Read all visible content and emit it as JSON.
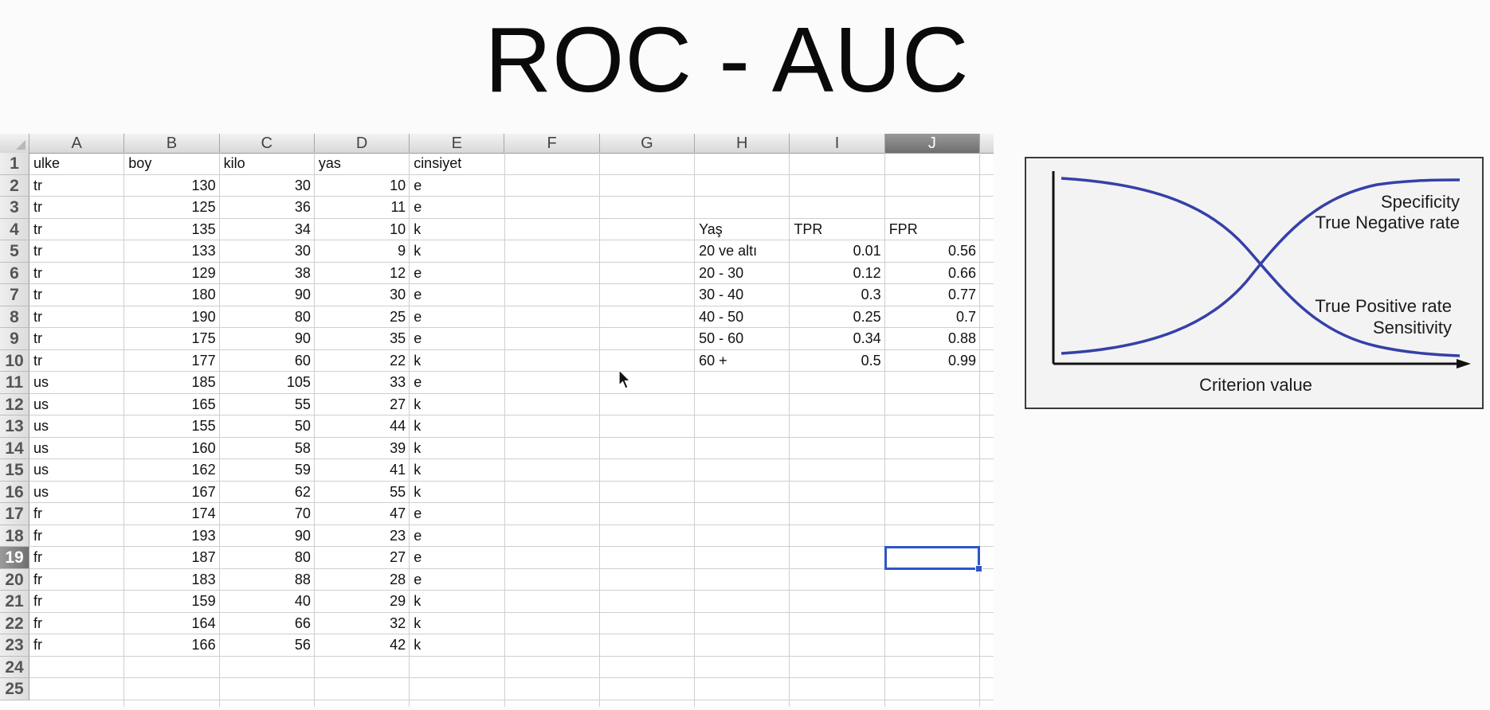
{
  "title": "ROC - AUC",
  "spreadsheet": {
    "columns": [
      "A",
      "B",
      "C",
      "D",
      "E",
      "F",
      "G",
      "H",
      "I",
      "J"
    ],
    "selected_column": "J",
    "selected_row": 19,
    "row_numbers": [
      "1",
      "2",
      "3",
      "4",
      "5",
      "6",
      "7",
      "8",
      "9",
      "10",
      "11",
      "12",
      "13",
      "14",
      "15",
      "16",
      "17",
      "18",
      "19",
      "20",
      "21",
      "22",
      "23",
      "24",
      "25"
    ],
    "headers": {
      "A": "ulke",
      "B": "boy",
      "C": "kilo",
      "D": "yas",
      "E": "cinsiyet"
    },
    "rows": [
      [
        "tr",
        "130",
        "30",
        "10",
        "e"
      ],
      [
        "tr",
        "125",
        "36",
        "11",
        "e"
      ],
      [
        "tr",
        "135",
        "34",
        "10",
        "k"
      ],
      [
        "tr",
        "133",
        "30",
        "9",
        "k"
      ],
      [
        "tr",
        "129",
        "38",
        "12",
        "e"
      ],
      [
        "tr",
        "180",
        "90",
        "30",
        "e"
      ],
      [
        "tr",
        "190",
        "80",
        "25",
        "e"
      ],
      [
        "tr",
        "175",
        "90",
        "35",
        "e"
      ],
      [
        "tr",
        "177",
        "60",
        "22",
        "k"
      ],
      [
        "us",
        "185",
        "105",
        "33",
        "e"
      ],
      [
        "us",
        "165",
        "55",
        "27",
        "k"
      ],
      [
        "us",
        "155",
        "50",
        "44",
        "k"
      ],
      [
        "us",
        "160",
        "58",
        "39",
        "k"
      ],
      [
        "us",
        "162",
        "59",
        "41",
        "k"
      ],
      [
        "us",
        "167",
        "62",
        "55",
        "k"
      ],
      [
        "fr",
        "174",
        "70",
        "47",
        "e"
      ],
      [
        "fr",
        "193",
        "90",
        "23",
        "e"
      ],
      [
        "fr",
        "187",
        "80",
        "27",
        "e"
      ],
      [
        "fr",
        "183",
        "88",
        "28",
        "e"
      ],
      [
        "fr",
        "159",
        "40",
        "29",
        "k"
      ],
      [
        "fr",
        "164",
        "66",
        "32",
        "k"
      ],
      [
        "fr",
        "166",
        "56",
        "42",
        "k"
      ]
    ],
    "side_table": {
      "headers": [
        "Yaş",
        "TPR",
        "FPR"
      ],
      "rows": [
        [
          "20 ve altı",
          "0.01",
          "0.56"
        ],
        [
          "20 - 30",
          "0.12",
          "0.66"
        ],
        [
          "30 - 40",
          "0.3",
          "0.77"
        ],
        [
          "40 - 50",
          "0.25",
          "0.7"
        ],
        [
          "50 - 60",
          "0.34",
          "0.88"
        ],
        [
          "60 +",
          "0.5",
          "0.99"
        ]
      ]
    }
  },
  "figure": {
    "label_specificity_1": "Specificity",
    "label_specificity_2": "True Negative rate",
    "label_tpr_1": "True Positive rate",
    "label_tpr_2": "Sensitivity",
    "xlabel": "Criterion value",
    "curve_color": "#3540a8"
  }
}
